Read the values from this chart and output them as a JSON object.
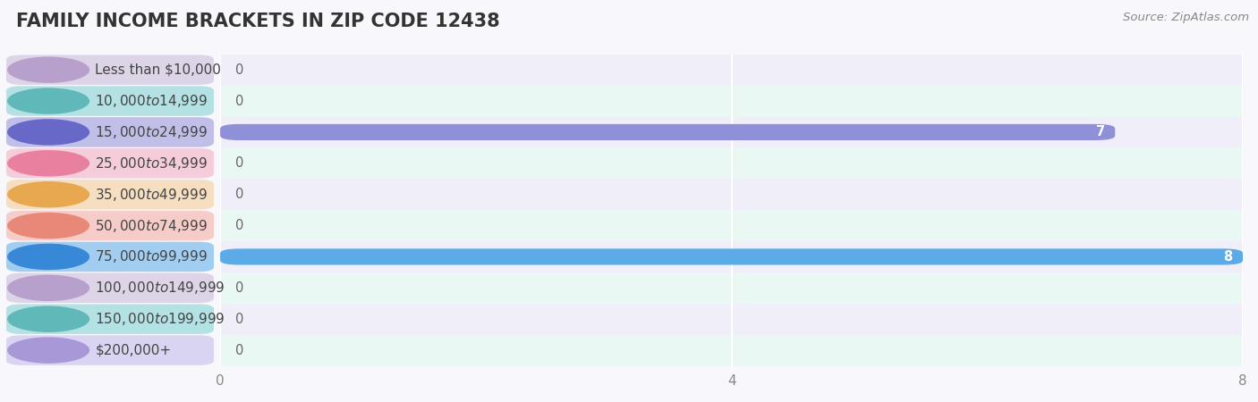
{
  "title": "FAMILY INCOME BRACKETS IN ZIP CODE 12438",
  "source": "Source: ZipAtlas.com",
  "categories": [
    "Less than $10,000",
    "$10,000 to $14,999",
    "$15,000 to $24,999",
    "$25,000 to $34,999",
    "$35,000 to $49,999",
    "$50,000 to $74,999",
    "$75,000 to $99,999",
    "$100,000 to $149,999",
    "$150,000 to $199,999",
    "$200,000+"
  ],
  "values": [
    0,
    0,
    7,
    0,
    0,
    0,
    8,
    0,
    0,
    0
  ],
  "bar_colors": [
    "#c8b8d8",
    "#7dcfcf",
    "#9090d8",
    "#f4a8bf",
    "#f5ca90",
    "#f5a8a0",
    "#5aabe8",
    "#c8b8d8",
    "#7dcfcf",
    "#c0b8e8"
  ],
  "pill_circle_colors": [
    "#b8a0cc",
    "#60b8b8",
    "#6868c8",
    "#e880a0",
    "#e8a850",
    "#e88878",
    "#3888d8",
    "#b8a0cc",
    "#60b8b8",
    "#a898d8"
  ],
  "row_bg_colors": [
    "#f0eef8",
    "#eaf8f4"
  ],
  "bar_bg_color": "#ebebf5",
  "background_color": "#f8f8fc",
  "grid_color": "#ffffff",
  "xlim": [
    0,
    8
  ],
  "xticks": [
    0,
    4,
    8
  ],
  "title_fontsize": 15,
  "label_fontsize": 11,
  "value_fontsize": 10.5,
  "source_fontsize": 9.5,
  "tick_fontsize": 11
}
